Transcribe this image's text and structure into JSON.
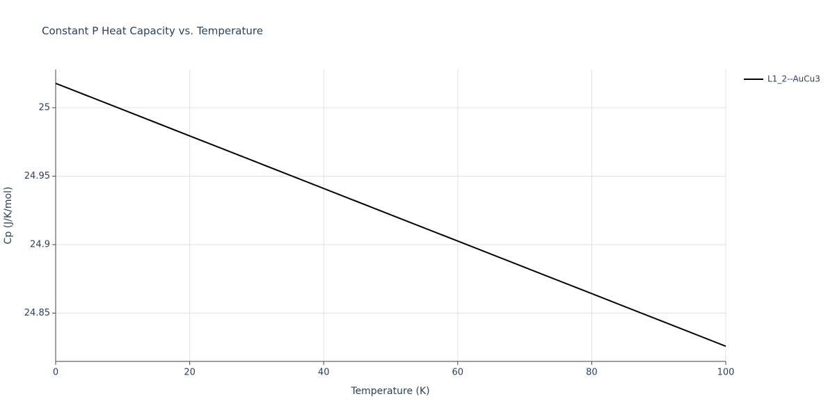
{
  "chart_data": {
    "type": "line",
    "title": "Constant P Heat Capacity vs. Temperature",
    "x_label": "Temperature (K)",
    "y_label": "Cp (J/K/mol)",
    "x": [
      0,
      10,
      20,
      30,
      40,
      50,
      60,
      70,
      80,
      90,
      100
    ],
    "series": [
      {
        "name": "L1_2--AuCu3",
        "color": "#000000",
        "values": [
          25.0178,
          24.9986,
          24.9794,
          24.9602,
          24.941,
          24.9218,
          24.9026,
          24.8834,
          24.8642,
          24.845,
          24.8258
        ]
      }
    ],
    "xlim": [
      0,
      100
    ],
    "xticks": [
      0,
      20,
      40,
      60,
      80,
      100
    ],
    "ylim": [
      24.8147,
      25.0279
    ],
    "yticks": [
      24.85,
      24.9,
      24.95,
      25
    ],
    "grid": true,
    "legend": "right"
  }
}
